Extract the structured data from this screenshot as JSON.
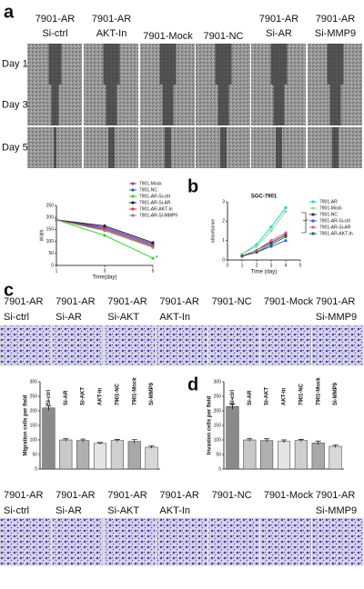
{
  "panel_labels": [
    "a",
    "b",
    "c",
    "d"
  ],
  "wound_healing": {
    "columns": [
      [
        "7901-AR",
        "Si-ctrl"
      ],
      [
        "7901-AR",
        "AKT-In"
      ],
      [
        "7901-Mock"
      ],
      [
        "7901-NC"
      ],
      [
        "7901-AR",
        "Si-AR"
      ],
      [
        "7901-AR",
        "Si-MMP9"
      ]
    ],
    "rows": [
      "Day 1",
      "Day 3",
      "Day 5"
    ]
  },
  "migration_images": {
    "columns": [
      [
        "7901-AR",
        "Si-ctrl"
      ],
      [
        "7901-AR",
        "Si-AR"
      ],
      [
        "7901-AR",
        "Si-AKT"
      ],
      [
        "7901-AR",
        "AKT-In"
      ],
      [
        "7901-NC"
      ],
      [
        "7901-Mock"
      ],
      [
        "7901-AR",
        "Si-MMP9"
      ]
    ]
  },
  "invasion_images": {
    "columns": [
      [
        "7901-AR",
        "Si-ctrl"
      ],
      [
        "7901-AR",
        "Si-AR"
      ],
      [
        "7901-AR",
        "Si-AKT"
      ],
      [
        "7901-AR",
        "AKT-In"
      ],
      [
        "7901-NC"
      ],
      [
        "7901-Mock"
      ],
      [
        "7901-AR",
        "Si-MMP9"
      ]
    ]
  },
  "chart_data": [
    {
      "type": "line",
      "x_label": "Time(day)",
      "y_label": "Width",
      "annotation": "*",
      "x": [
        1,
        3,
        5
      ],
      "xlim": [
        1,
        5
      ],
      "xticks": [
        1,
        3,
        5
      ],
      "ylim": [
        0,
        250
      ],
      "yticks": [
        0,
        50,
        100,
        150,
        200,
        250
      ],
      "series": [
        {
          "name": "7901-Mock",
          "color": "#8e3fb5",
          "values": [
            190,
            160,
            90
          ]
        },
        {
          "name": "7901-NC",
          "color": "#2f5fb3",
          "values": [
            190,
            155,
            85
          ]
        },
        {
          "name": "7901-AR-Si-ctrl",
          "color": "#3bcf2e",
          "values": [
            190,
            125,
            30
          ]
        },
        {
          "name": "7901-AR-Si-AR",
          "color": "#222244",
          "values": [
            190,
            165,
            95
          ]
        },
        {
          "name": "7901-AR-AKT-In",
          "color": "#d0343a",
          "values": [
            190,
            150,
            80
          ]
        },
        {
          "name": "7901-AR-Si-MMP9",
          "color": "#888888",
          "values": [
            190,
            145,
            75
          ]
        }
      ]
    },
    {
      "type": "line",
      "title": "SGC-7901",
      "x_label": "Time (day)",
      "y_label": "absorbance",
      "annotation": "**",
      "x": [
        1,
        2,
        3,
        4
      ],
      "xlim": [
        0,
        5
      ],
      "xticks": [
        0,
        1,
        2,
        3,
        4,
        5
      ],
      "ylim": [
        0,
        3
      ],
      "yticks": [
        0,
        1,
        2,
        3
      ],
      "series": [
        {
          "name": "7901-AR",
          "color": "#22d3d3",
          "values": [
            0.3,
            0.8,
            1.7,
            2.7
          ]
        },
        {
          "name": "7901-Mock",
          "color": "#8fe08f",
          "values": [
            0.3,
            0.7,
            1.5,
            2.5
          ]
        },
        {
          "name": "7901-NC",
          "color": "#333366",
          "values": [
            0.2,
            0.5,
            0.9,
            1.3
          ]
        },
        {
          "name": "7901-AR-Si-ctrl",
          "color": "#3a5fd0",
          "values": [
            0.2,
            0.4,
            0.7,
            1.0
          ]
        },
        {
          "name": "7901-AR-Si-AR",
          "color": "#e05a8a",
          "values": [
            0.2,
            0.5,
            1.0,
            1.4
          ]
        },
        {
          "name": "7901-AR-AKT-In",
          "color": "#2d6b3a",
          "values": [
            0.2,
            0.4,
            0.8,
            1.2
          ]
        }
      ]
    },
    {
      "type": "bar",
      "y_label": "Migration cells per field",
      "annotation": "*",
      "categories": [
        "Si-ctrl",
        "Si-AR",
        "Si-AKT",
        "AKT-In",
        "7901-NC",
        "7901-Mock",
        "Si-MMP9"
      ],
      "values": [
        210,
        100,
        98,
        88,
        98,
        95,
        75
      ],
      "errors": [
        8,
        4,
        5,
        3,
        4,
        6,
        4
      ],
      "colors": [
        "#8a8a8a",
        "#c8c8c8",
        "#b0b0b0",
        "#e4e4e4",
        "#cfcfcf",
        "#a8a8a8",
        "#d8d8d8"
      ],
      "ylim": [
        0,
        300
      ],
      "yticks": [
        0,
        50,
        100,
        150,
        200,
        250,
        300
      ]
    },
    {
      "type": "bar",
      "y_label": "Invasion cells per field",
      "annotation": "*",
      "categories": [
        "Si-ctrl",
        "Si-AR",
        "Si-AKT",
        "AKT-In",
        "7901-NC",
        "7901-Mock",
        "Si-MMP9"
      ],
      "values": [
        215,
        100,
        98,
        95,
        98,
        90,
        78
      ],
      "errors": [
        9,
        4,
        6,
        5,
        4,
        6,
        4
      ],
      "colors": [
        "#8a8a8a",
        "#c8c8c8",
        "#b0b0b0",
        "#e4e4e4",
        "#cfcfcf",
        "#a8a8a8",
        "#d8d8d8"
      ],
      "ylim": [
        0,
        300
      ],
      "yticks": [
        0,
        50,
        100,
        150,
        200,
        250,
        300
      ]
    }
  ]
}
